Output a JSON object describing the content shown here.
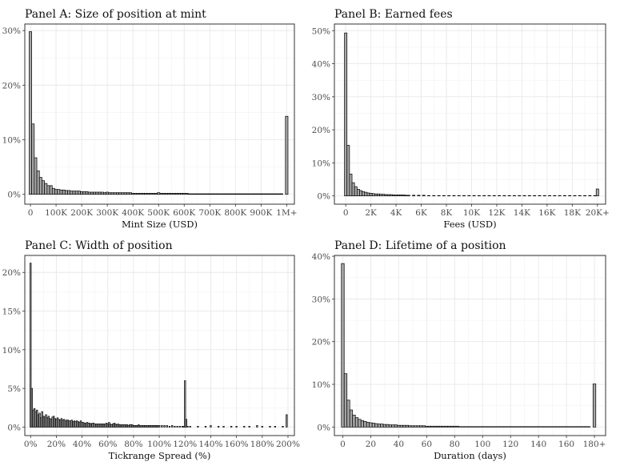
{
  "chart_data": [
    {
      "type": "bar",
      "title": "Panel A: Size of position at mint",
      "xlabel": "Mint Size (USD)",
      "ylabel": "",
      "xlim": [
        -22,
        1030
      ],
      "ylim": [
        -0.018,
        0.312
      ],
      "xticks": [
        0,
        100,
        200,
        300,
        400,
        500,
        600,
        700,
        800,
        900,
        1000
      ],
      "xtick_labels": [
        "0",
        "100K",
        "200K",
        "300K",
        "400K",
        "500K",
        "600K",
        "700K",
        "800K",
        "900K",
        "1M+"
      ],
      "yticks": [
        0,
        0.1,
        0.2,
        0.3
      ],
      "ytick_labels": [
        "0%",
        "10%",
        "20%",
        "30%"
      ],
      "bin_width": 10,
      "x": [
        0,
        10,
        20,
        30,
        40,
        50,
        60,
        70,
        80,
        90,
        100,
        110,
        120,
        130,
        140,
        150,
        160,
        170,
        180,
        190,
        200,
        210,
        220,
        230,
        240,
        250,
        260,
        270,
        280,
        290,
        300,
        310,
        320,
        330,
        340,
        350,
        360,
        370,
        380,
        390,
        400,
        410,
        420,
        430,
        440,
        450,
        460,
        470,
        480,
        490,
        500,
        510,
        520,
        530,
        540,
        550,
        560,
        570,
        580,
        590,
        600,
        610,
        620,
        630,
        640,
        650,
        660,
        670,
        680,
        690,
        700,
        710,
        720,
        730,
        740,
        750,
        760,
        770,
        780,
        790,
        800,
        810,
        820,
        830,
        840,
        850,
        860,
        870,
        880,
        890,
        900,
        910,
        920,
        930,
        940,
        950,
        960,
        970,
        980,
        1000
      ],
      "values": [
        0.298,
        0.129,
        0.067,
        0.043,
        0.031,
        0.025,
        0.02,
        0.016,
        0.016,
        0.011,
        0.009,
        0.009,
        0.008,
        0.008,
        0.007,
        0.007,
        0.006,
        0.006,
        0.006,
        0.006,
        0.005,
        0.005,
        0.005,
        0.004,
        0.004,
        0.004,
        0.004,
        0.004,
        0.004,
        0.003,
        0.004,
        0.003,
        0.003,
        0.003,
        0.003,
        0.003,
        0.003,
        0.003,
        0.003,
        0.003,
        0.002,
        0.002,
        0.002,
        0.002,
        0.002,
        0.002,
        0.002,
        0.002,
        0.002,
        0.002,
        0.003,
        0.002,
        0.002,
        0.002,
        0.002,
        0.002,
        0.002,
        0.002,
        0.002,
        0.002,
        0.002,
        0.002,
        0.001,
        0.001,
        0.001,
        0.001,
        0.001,
        0.001,
        0.001,
        0.001,
        0.001,
        0.001,
        0.001,
        0.001,
        0.001,
        0.001,
        0.001,
        0.001,
        0.001,
        0.001,
        0.001,
        0.001,
        0.001,
        0.001,
        0.001,
        0.001,
        0.001,
        0.001,
        0.001,
        0.001,
        0.001,
        0.001,
        0.001,
        0.001,
        0.001,
        0.001,
        0.001,
        0.001,
        0.001,
        0.143
      ],
      "grid": true,
      "legend": "none"
    },
    {
      "type": "bar",
      "title": "Panel B: Earned fees",
      "xlabel": "Fees (USD)",
      "ylabel": "",
      "xlim": [
        -0.9,
        20.65
      ],
      "ylim": [
        -0.025,
        0.52
      ],
      "xticks": [
        0,
        2,
        4,
        6,
        8,
        10,
        12,
        14,
        16,
        18,
        20
      ],
      "xtick_labels": [
        "0",
        "2K",
        "4K",
        "6K",
        "8K",
        "10K",
        "12K",
        "14K",
        "16K",
        "18K",
        "20K+"
      ],
      "yticks": [
        0,
        0.1,
        0.2,
        0.3,
        0.4,
        0.5
      ],
      "ytick_labels": [
        "0%",
        "10%",
        "20%",
        "30%",
        "40%",
        "50%"
      ],
      "bin_width": 0.2,
      "x": [
        0,
        0.2,
        0.4,
        0.6,
        0.8,
        1.0,
        1.2,
        1.4,
        1.6,
        1.8,
        2.0,
        2.2,
        2.4,
        2.6,
        2.8,
        3.0,
        3.2,
        3.4,
        3.6,
        3.8,
        4.0,
        4.2,
        4.4,
        4.6,
        4.8,
        5.0,
        5.4,
        5.8,
        6.2,
        6.6,
        7.0,
        7.4,
        7.8,
        8.2,
        8.6,
        9.0,
        9.4,
        9.8,
        10.2,
        10.6,
        11.0,
        11.4,
        11.8,
        12.2,
        12.6,
        13.0,
        13.4,
        13.8,
        14.2,
        14.6,
        15.0,
        15.4,
        15.8,
        16.2,
        16.6,
        17.0,
        17.4,
        17.8,
        18.2,
        18.6,
        19.0,
        19.4,
        19.8,
        20.0
      ],
      "values": [
        0.493,
        0.153,
        0.066,
        0.04,
        0.028,
        0.02,
        0.016,
        0.013,
        0.011,
        0.009,
        0.008,
        0.007,
        0.006,
        0.006,
        0.005,
        0.005,
        0.004,
        0.004,
        0.004,
        0.003,
        0.003,
        0.003,
        0.003,
        0.003,
        0.002,
        0.002,
        0.002,
        0.002,
        0.002,
        0.001,
        0.001,
        0.001,
        0.001,
        0.001,
        0.001,
        0.001,
        0.001,
        0.001,
        0.001,
        0.001,
        0.001,
        0.001,
        0.001,
        0.001,
        0.001,
        0.001,
        0.001,
        0.001,
        0.001,
        0.001,
        0.001,
        0.001,
        0.001,
        0.001,
        0.001,
        0.001,
        0.001,
        0.001,
        0.001,
        0.001,
        0.001,
        0.001,
        0.001,
        0.021
      ],
      "grid": true,
      "legend": "none"
    },
    {
      "type": "bar",
      "title": "Panel C: Width of position",
      "xlabel": "Tickrange Spread (%)",
      "ylabel": "",
      "xlim": [
        -0.045,
        2.05
      ],
      "ylim": [
        -0.011,
        0.222
      ],
      "xticks": [
        0,
        0.2,
        0.4,
        0.6,
        0.8,
        1.0,
        1.2,
        1.4,
        1.6,
        1.8,
        2.0
      ],
      "xtick_labels": [
        "0%",
        "20%",
        "40%",
        "60%",
        "80%",
        "100%",
        "120%",
        "140%",
        "160%",
        "180%",
        "200%"
      ],
      "yticks": [
        0,
        0.05,
        0.1,
        0.15,
        0.2
      ],
      "ytick_labels": [
        "0%",
        "5%",
        "10%",
        "15%",
        "20%"
      ],
      "bin_width": 0.01,
      "x": [
        0.0,
        0.01,
        0.02,
        0.03,
        0.04,
        0.05,
        0.06,
        0.07,
        0.08,
        0.09,
        0.1,
        0.11,
        0.12,
        0.13,
        0.14,
        0.15,
        0.16,
        0.17,
        0.18,
        0.19,
        0.2,
        0.21,
        0.22,
        0.23,
        0.24,
        0.25,
        0.26,
        0.27,
        0.28,
        0.29,
        0.3,
        0.31,
        0.32,
        0.33,
        0.34,
        0.35,
        0.36,
        0.37,
        0.38,
        0.39,
        0.4,
        0.41,
        0.42,
        0.43,
        0.44,
        0.45,
        0.46,
        0.47,
        0.48,
        0.49,
        0.5,
        0.51,
        0.52,
        0.53,
        0.54,
        0.55,
        0.56,
        0.57,
        0.58,
        0.59,
        0.6,
        0.61,
        0.62,
        0.63,
        0.64,
        0.65,
        0.66,
        0.67,
        0.68,
        0.69,
        0.7,
        0.71,
        0.72,
        0.73,
        0.74,
        0.75,
        0.76,
        0.77,
        0.78,
        0.79,
        0.8,
        0.81,
        0.82,
        0.83,
        0.84,
        0.85,
        0.86,
        0.87,
        0.88,
        0.89,
        0.9,
        0.91,
        0.92,
        0.93,
        0.94,
        0.95,
        0.96,
        0.97,
        0.98,
        0.99,
        1.0,
        1.02,
        1.04,
        1.06,
        1.08,
        1.1,
        1.12,
        1.14,
        1.16,
        1.18,
        1.19,
        1.2,
        1.21,
        1.22,
        1.24,
        1.3,
        1.36,
        1.4,
        1.46,
        1.5,
        1.56,
        1.6,
        1.66,
        1.7,
        1.76,
        1.8,
        1.86,
        1.9,
        1.96,
        1.99
      ],
      "values": [
        0.212,
        0.05,
        0.022,
        0.024,
        0.02,
        0.022,
        0.016,
        0.018,
        0.012,
        0.02,
        0.014,
        0.013,
        0.016,
        0.012,
        0.014,
        0.011,
        0.01,
        0.013,
        0.014,
        0.011,
        0.01,
        0.012,
        0.01,
        0.009,
        0.011,
        0.009,
        0.01,
        0.008,
        0.009,
        0.009,
        0.008,
        0.008,
        0.009,
        0.007,
        0.008,
        0.007,
        0.008,
        0.007,
        0.006,
        0.008,
        0.006,
        0.006,
        0.005,
        0.005,
        0.006,
        0.005,
        0.005,
        0.004,
        0.005,
        0.005,
        0.004,
        0.004,
        0.004,
        0.004,
        0.004,
        0.004,
        0.004,
        0.004,
        0.004,
        0.005,
        0.004,
        0.006,
        0.004,
        0.003,
        0.004,
        0.005,
        0.004,
        0.003,
        0.004,
        0.003,
        0.003,
        0.003,
        0.003,
        0.003,
        0.003,
        0.003,
        0.002,
        0.003,
        0.003,
        0.003,
        0.002,
        0.002,
        0.002,
        0.002,
        0.003,
        0.002,
        0.002,
        0.002,
        0.002,
        0.002,
        0.002,
        0.002,
        0.002,
        0.002,
        0.002,
        0.002,
        0.002,
        0.002,
        0.002,
        0.002,
        0.002,
        0.002,
        0.002,
        0.002,
        0.001,
        0.002,
        0.001,
        0.001,
        0.001,
        0.001,
        0.001,
        0.06,
        0.01,
        0.001,
        0.001,
        0.001,
        0.001,
        0.002,
        0.001,
        0.001,
        0.001,
        0.001,
        0.001,
        0.001,
        0.002,
        0.001,
        0.001,
        0.001,
        0.001,
        0.016
      ],
      "grid": true,
      "legend": "none"
    },
    {
      "type": "bar",
      "title": "Panel D: Lifetime of a position",
      "xlabel": "Duration (days)",
      "ylabel": "",
      "xlim": [
        -6,
        188
      ],
      "ylim": [
        -0.02,
        0.402
      ],
      "xticks": [
        0,
        20,
        40,
        60,
        80,
        100,
        120,
        140,
        160,
        180
      ],
      "xtick_labels": [
        "0",
        "20",
        "40",
        "60",
        "80",
        "100",
        "120",
        "140",
        "160",
        "180+"
      ],
      "yticks": [
        0,
        0.1,
        0.2,
        0.3,
        0.4
      ],
      "ytick_labels": [
        "0%",
        "10%",
        "20%",
        "30%",
        "40%"
      ],
      "bin_width": 2,
      "x": [
        0,
        2,
        4,
        6,
        8,
        10,
        12,
        14,
        16,
        18,
        20,
        22,
        24,
        26,
        28,
        30,
        32,
        34,
        36,
        38,
        40,
        42,
        44,
        46,
        48,
        50,
        52,
        54,
        56,
        58,
        60,
        62,
        64,
        66,
        68,
        70,
        72,
        74,
        76,
        78,
        80,
        82,
        84,
        86,
        88,
        90,
        92,
        94,
        96,
        98,
        100,
        102,
        104,
        106,
        108,
        110,
        112,
        114,
        116,
        118,
        120,
        122,
        124,
        126,
        128,
        130,
        132,
        134,
        136,
        138,
        140,
        142,
        144,
        146,
        148,
        150,
        152,
        154,
        156,
        158,
        160,
        162,
        164,
        166,
        168,
        170,
        172,
        174,
        176,
        180
      ],
      "values": [
        0.383,
        0.125,
        0.063,
        0.04,
        0.028,
        0.022,
        0.018,
        0.015,
        0.013,
        0.011,
        0.01,
        0.009,
        0.008,
        0.007,
        0.007,
        0.006,
        0.006,
        0.005,
        0.005,
        0.005,
        0.004,
        0.004,
        0.004,
        0.004,
        0.003,
        0.003,
        0.003,
        0.003,
        0.003,
        0.003,
        0.002,
        0.002,
        0.002,
        0.002,
        0.002,
        0.002,
        0.002,
        0.002,
        0.002,
        0.002,
        0.002,
        0.002,
        0.001,
        0.001,
        0.001,
        0.001,
        0.001,
        0.001,
        0.001,
        0.001,
        0.001,
        0.001,
        0.001,
        0.001,
        0.001,
        0.001,
        0.001,
        0.001,
        0.001,
        0.001,
        0.001,
        0.001,
        0.001,
        0.001,
        0.001,
        0.001,
        0.001,
        0.001,
        0.001,
        0.001,
        0.001,
        0.001,
        0.001,
        0.001,
        0.001,
        0.001,
        0.001,
        0.001,
        0.001,
        0.001,
        0.001,
        0.001,
        0.001,
        0.001,
        0.001,
        0.001,
        0.001,
        0.001,
        0.001,
        0.101
      ],
      "grid": true,
      "legend": "none"
    }
  ],
  "colors": {
    "bar_fill": "#a6a6a6",
    "bar_stroke": "#000000",
    "grid": "#e8e8e8",
    "frame": "#333333"
  }
}
